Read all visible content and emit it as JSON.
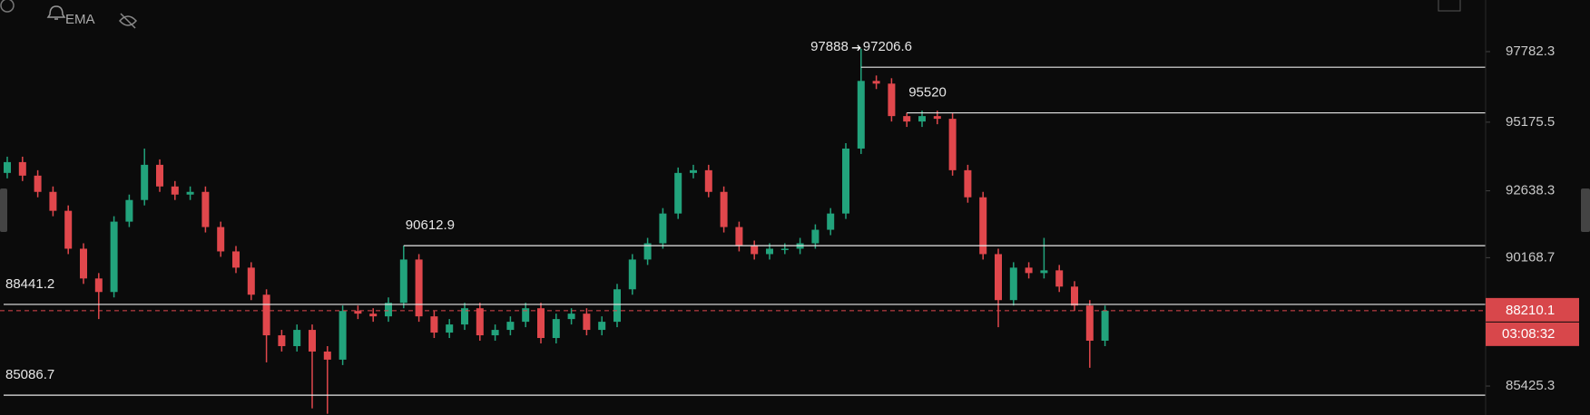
{
  "chart_data": {
    "type": "candlestick",
    "indicator": "EMA",
    "colors": {
      "up": "#22a37c",
      "down": "#e0474c"
    },
    "open": [
      93300,
      93700,
      93200,
      92600,
      91900,
      90500,
      89400,
      88900,
      91500,
      92300,
      93600,
      92800,
      92500,
      92600,
      91300,
      90400,
      89800,
      88800,
      87300,
      86900,
      87500,
      86700,
      86400,
      88200,
      88100,
      88000,
      88500,
      90100,
      88000,
      87400,
      87700,
      88300,
      87300,
      87500,
      87800,
      88300,
      87200,
      87900,
      88100,
      87500,
      87800,
      89000,
      90100,
      90700,
      91800,
      93300,
      93400,
      92600,
      91300,
      90600,
      90300,
      90500,
      90500,
      90700,
      91200,
      91800,
      94200,
      96700,
      96600,
      95400,
      95200,
      95400,
      95300,
      93400,
      92400,
      90300,
      88600,
      89800,
      89600,
      89700,
      89100,
      88400,
      87100
    ],
    "high": [
      93900,
      93900,
      93400,
      92800,
      92100,
      90700,
      89600,
      91700,
      92500,
      94200,
      93800,
      93000,
      92800,
      92800,
      91500,
      90600,
      90000,
      89000,
      87500,
      87700,
      87700,
      86900,
      88400,
      88400,
      88300,
      88700,
      90612.9,
      90300,
      88200,
      87900,
      88500,
      88500,
      87700,
      88000,
      88500,
      88500,
      88100,
      88300,
      88300,
      88000,
      89200,
      90300,
      90900,
      92000,
      93500,
      93600,
      93600,
      92800,
      91500,
      90800,
      90700,
      90700,
      90900,
      91400,
      92000,
      94400,
      97888.0,
      96900,
      96800,
      95520.0,
      95600,
      95600,
      95500,
      93600,
      92600,
      90500,
      90000,
      90000,
      90900,
      89900,
      89300,
      88600,
      88400
    ],
    "low": [
      93100,
      93000,
      92400,
      91700,
      90300,
      89200,
      87900,
      88700,
      91300,
      92100,
      92600,
      92300,
      92300,
      91100,
      90200,
      89600,
      88600,
      86300,
      86700,
      86700,
      84600,
      84400,
      86200,
      87900,
      87800,
      87800,
      88300,
      87800,
      87200,
      87200,
      87500,
      87100,
      87100,
      87300,
      87600,
      87000,
      87000,
      87700,
      87300,
      87300,
      87600,
      88800,
      89900,
      90500,
      91600,
      93100,
      92400,
      91100,
      90400,
      90100,
      90100,
      90300,
      90300,
      90500,
      91000,
      91600,
      94000,
      96400,
      95200,
      95000,
      95000,
      95100,
      93200,
      92200,
      90100,
      87600,
      88400,
      89400,
      89400,
      88900,
      88200,
      86100,
      86900
    ],
    "close": [
      93700,
      93200,
      92600,
      91900,
      90500,
      89400,
      88900,
      91500,
      92300,
      93600,
      92800,
      92500,
      92600,
      91300,
      90400,
      89800,
      88800,
      87300,
      86900,
      87500,
      86700,
      86400,
      88200,
      88100,
      88000,
      88500,
      90100,
      88000,
      87400,
      87700,
      88300,
      87300,
      87500,
      87800,
      88300,
      87200,
      87900,
      88100,
      87500,
      87800,
      89000,
      90100,
      90700,
      91800,
      93300,
      93400,
      92600,
      91300,
      90600,
      90300,
      90500,
      90500,
      90700,
      91200,
      91800,
      94200,
      96700,
      96600,
      95400,
      95200,
      95400,
      95300,
      93400,
      92400,
      90300,
      88600,
      89800,
      89600,
      89700,
      89100,
      88400,
      87100,
      88210.1
    ],
    "ylim": [
      84355,
      99690
    ],
    "yticks": [
      97782.3,
      95175.5,
      92638.3,
      90168.7,
      85425.3
    ],
    "peak": 97888.0,
    "levels": [
      97206.6,
      95520.0,
      90612.9,
      88441.2,
      85086.7
    ],
    "last_price": 88210.1,
    "countdown": "03:08:32"
  }
}
